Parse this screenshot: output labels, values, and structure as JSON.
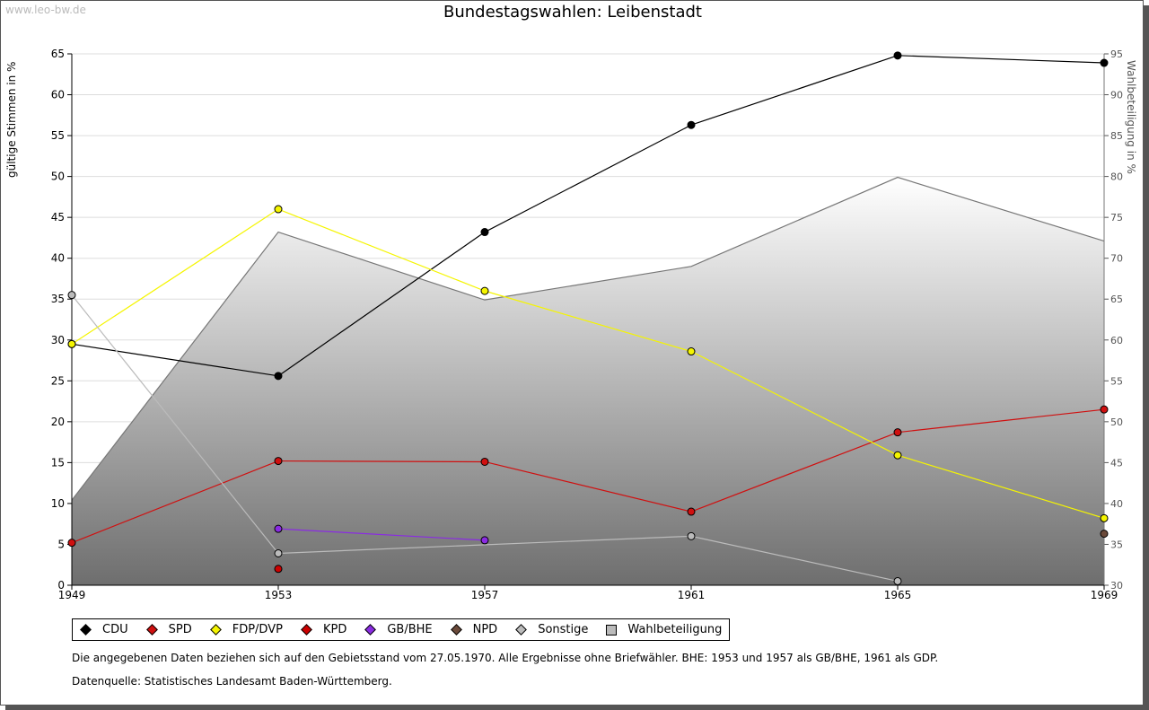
{
  "watermark": "www.leo-bw.de",
  "chart_data": {
    "type": "line",
    "title": "Bundestagswahlen: Leibenstadt",
    "x": [
      "1949",
      "1953",
      "1957",
      "1961",
      "1965",
      "1969"
    ],
    "ylabel": "gültige Stimmen in %",
    "y2label": "Wahlbeteiligung in %",
    "ylim": [
      0,
      65
    ],
    "y2lim": [
      30,
      95
    ],
    "yticks": [
      0,
      5,
      10,
      15,
      20,
      25,
      30,
      35,
      40,
      45,
      50,
      55,
      60,
      65
    ],
    "y2ticks": [
      30,
      35,
      40,
      45,
      50,
      55,
      60,
      65,
      70,
      75,
      80,
      85,
      90,
      95
    ],
    "grid": true,
    "legend_position": "bottom",
    "series": [
      {
        "name": "CDU",
        "color": "#000000",
        "values": [
          29.5,
          25.6,
          43.2,
          56.3,
          64.8,
          63.9
        ]
      },
      {
        "name": "SPD",
        "color": "#d01010",
        "values": [
          5.2,
          15.2,
          15.1,
          9.0,
          18.7,
          21.5
        ]
      },
      {
        "name": "FDP/DVP",
        "color": "#f5f500",
        "values": [
          29.5,
          46.0,
          36.0,
          28.6,
          15.9,
          8.2
        ]
      },
      {
        "name": "KPD",
        "color": "#cc0000",
        "values": [
          null,
          2.0,
          null,
          null,
          null,
          null
        ]
      },
      {
        "name": "GB/BHE",
        "color": "#8a2be2",
        "values": [
          null,
          6.9,
          5.5,
          null,
          null,
          null
        ]
      },
      {
        "name": "NPD",
        "color": "#6b4a3a",
        "values": [
          null,
          null,
          null,
          null,
          null,
          6.3
        ]
      },
      {
        "name": "Sonstige",
        "color": "#bbbbbb",
        "values": [
          35.5,
          3.9,
          null,
          6.0,
          0.5,
          null
        ]
      }
    ],
    "turnout": {
      "name": "Wahlbeteiligung",
      "values": [
        40.4,
        73.2,
        64.9,
        69.0,
        79.9,
        72.1
      ]
    }
  },
  "notes": [
    "Die angegebenen Daten beziehen sich auf den Gebietsstand vom 27.05.1970. Alle Ergebnisse ohne Briefwähler. BHE: 1953 und 1957 als GB/BHE, 1961 als GDP.",
    "Datenquelle: Statistisches Landesamt Baden-Württemberg."
  ]
}
